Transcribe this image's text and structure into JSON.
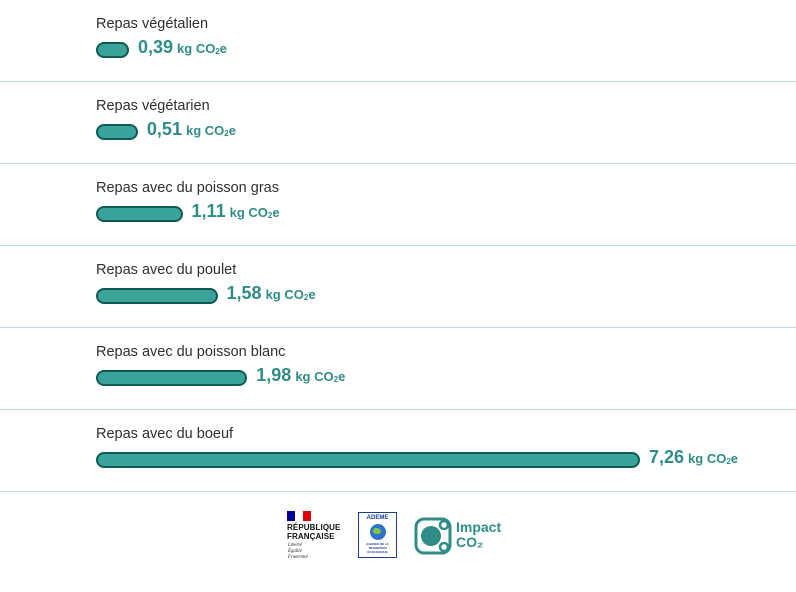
{
  "chart_data": {
    "type": "bar",
    "orientation": "horizontal",
    "unit": "kg CO₂e",
    "categories": [
      "Repas végétalien",
      "Repas végétarien",
      "Repas avec du poisson gras",
      "Repas avec du poulet",
      "Repas avec du poisson blanc",
      "Repas avec du boeuf"
    ],
    "values": [
      0.39,
      0.51,
      1.11,
      1.58,
      1.98,
      7.26
    ],
    "value_labels": [
      "0,39",
      "0,51",
      "1,11",
      "1,58",
      "1,98",
      "7,26"
    ],
    "grid": false,
    "colors": {
      "bar_fill": "#3aa39a",
      "bar_stroke": "#0f5a55",
      "value_text": "#2f8c86",
      "separator": "#b4dcdc"
    }
  },
  "footer": {
    "republique": {
      "title": "RÉPUBLIQUE\nFRANÇAISE",
      "motto": "Liberté\nÉgalité\nFraternité",
      "flag_colors": [
        "#000091",
        "#ffffff",
        "#e1000f"
      ]
    },
    "ademe": {
      "name": "ADEME",
      "subtitle": "AGENCE DE LA TRANSITION ÉCOLOGIQUE"
    },
    "impact": {
      "name": "Impact\nCO₂",
      "icon": "impact-co2-logo-icon"
    }
  }
}
